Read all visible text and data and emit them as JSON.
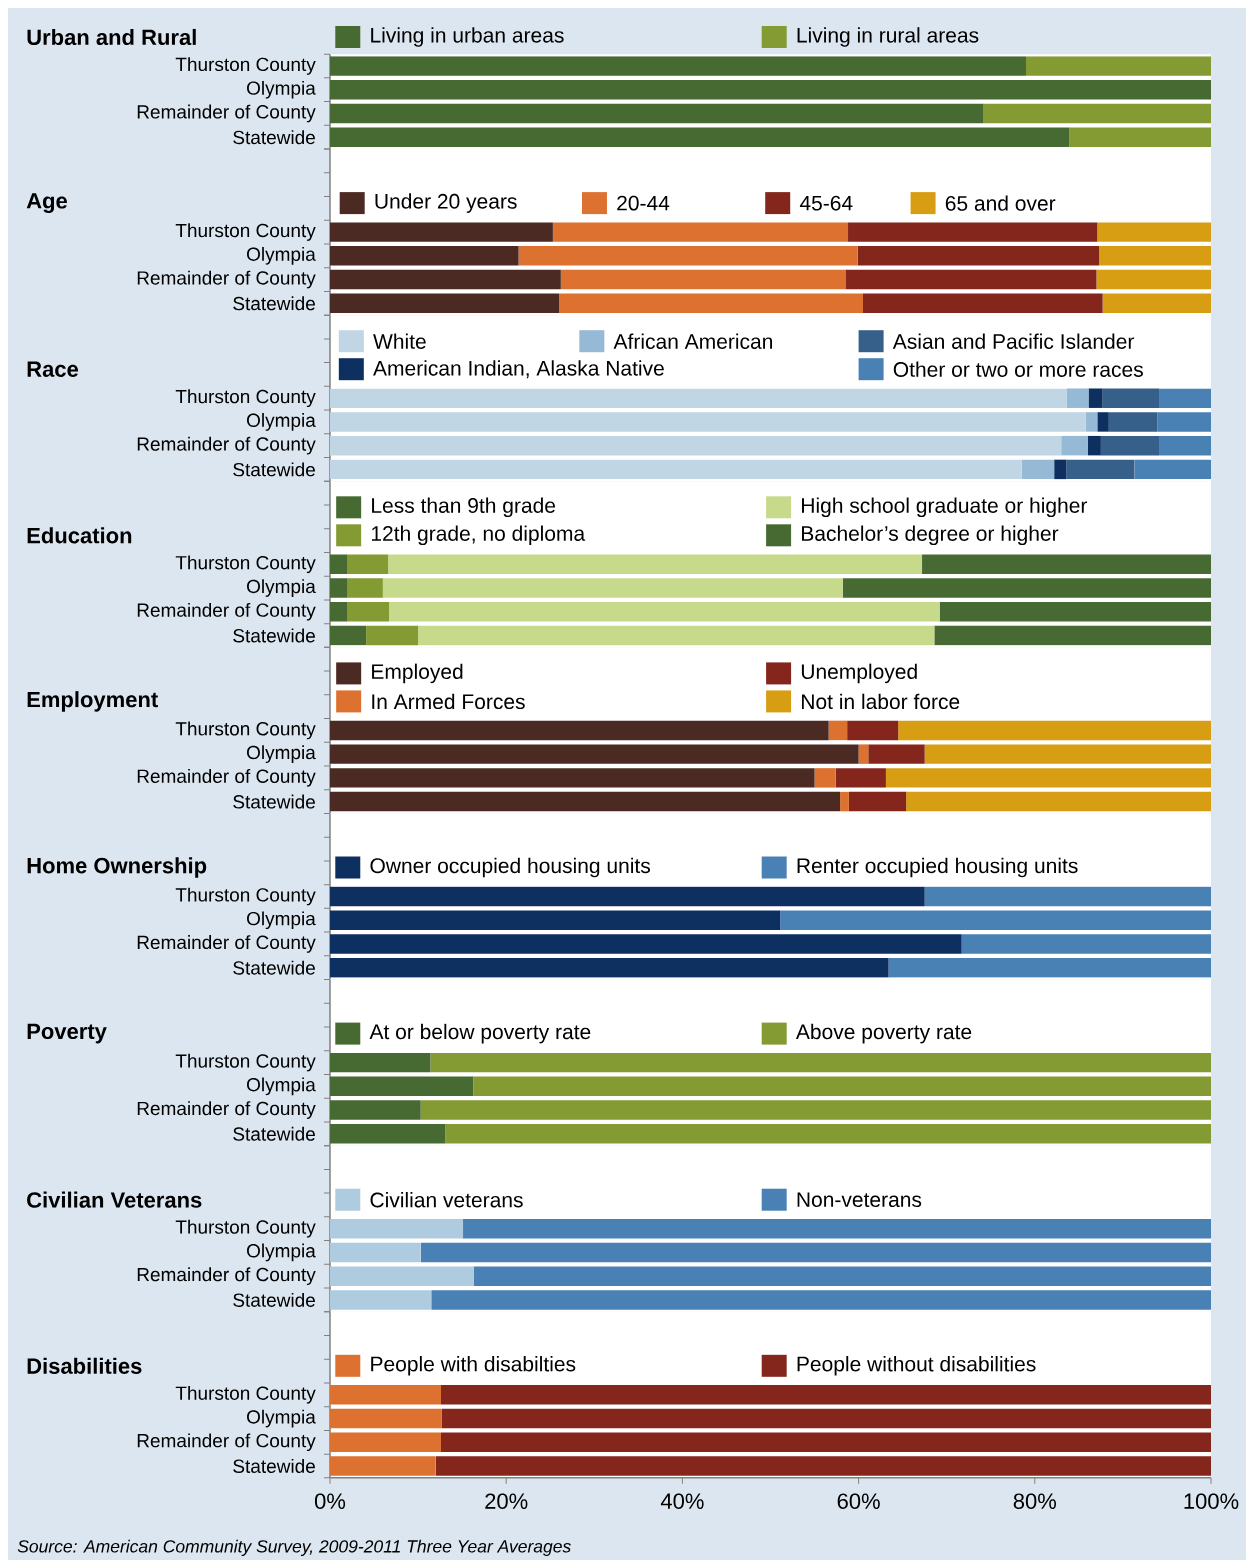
{
  "chart_data": [
    {
      "type": "bar",
      "orientation": "horizontal",
      "stacked": true,
      "title": "Urban and Rural",
      "categories": [
        "Thurston County",
        "Olympia",
        "Remainder of County",
        "Statewide"
      ],
      "series": [
        {
          "name": "Living in urban areas",
          "color": "#466a32",
          "values": [
            79.0,
            100,
            74.2,
            83.9
          ]
        },
        {
          "name": "Living in rural areas",
          "color": "#849a32",
          "values": [
            21.0,
            0,
            25.8,
            16.1
          ]
        }
      ],
      "xlim": [
        0,
        100
      ],
      "legend": "top",
      "tick_labels": "y"
    },
    {
      "type": "bar",
      "orientation": "horizontal",
      "stacked": true,
      "title": "Age",
      "categories": [
        "Thurston County",
        "Olympia",
        "Remainder of County",
        "Statewide"
      ],
      "series": [
        {
          "name": "Under 20 years",
          "color": "#4a2a22",
          "values": [
            25.3,
            21.4,
            26.2,
            26.0
          ]
        },
        {
          "name": "20-44",
          "color": "#dd7230",
          "values": [
            33.5,
            38.5,
            32.3,
            34.5
          ]
        },
        {
          "name": "45-64",
          "color": "#84261b",
          "values": [
            28.3,
            27.4,
            28.5,
            27.2
          ]
        },
        {
          "name": "65 and over",
          "color": "#d89e13",
          "values": [
            12.9,
            12.7,
            13.0,
            12.3
          ]
        }
      ],
      "xlim": [
        0,
        100
      ],
      "legend": "top",
      "tick_labels": "y"
    },
    {
      "type": "bar",
      "orientation": "horizontal",
      "stacked": true,
      "title": "Race",
      "categories": [
        "Thurston County",
        "Olympia",
        "Remainder of County",
        "Statewide"
      ],
      "series": [
        {
          "name": "White",
          "color": "#c0d6e4",
          "values": [
            83.6,
            85.8,
            83.0,
            78.5
          ]
        },
        {
          "name": "African American",
          "color": "#96b9d5",
          "values": [
            2.5,
            1.3,
            3.0,
            3.7
          ]
        },
        {
          "name": "American Indian, Alaska Native",
          "color": "#0d3060",
          "values": [
            1.6,
            1.3,
            1.5,
            1.4
          ]
        },
        {
          "name": "Asian and Pacific Islander",
          "color": "#365f8a",
          "values": [
            6.4,
            5.5,
            6.6,
            7.7
          ]
        },
        {
          "name": "Other or two or more races",
          "color": "#4a81b5",
          "values": [
            5.9,
            6.1,
            5.9,
            8.7
          ]
        }
      ],
      "xlim": [
        0,
        100
      ],
      "legend": "top",
      "tick_labels": "y"
    },
    {
      "type": "bar",
      "orientation": "horizontal",
      "stacked": true,
      "title": "Education",
      "categories": [
        "Thurston County",
        "Olympia",
        "Remainder of County",
        "Statewide"
      ],
      "series": [
        {
          "name": "Less than 9th grade",
          "color": "#466a32",
          "values": [
            2.0,
            2.0,
            2.0,
            4.1
          ]
        },
        {
          "name": "12th grade, no diploma",
          "color": "#849a32",
          "values": [
            4.6,
            4.0,
            4.7,
            5.9
          ]
        },
        {
          "name": "High school graduate or higher",
          "color": "#c7d98a",
          "values": [
            60.6,
            52.2,
            62.5,
            58.6
          ]
        },
        {
          "name": "Bachelor’s degree or higher",
          "color": "#466a32",
          "values": [
            32.8,
            41.8,
            30.8,
            31.4
          ]
        }
      ],
      "xlim": [
        0,
        100
      ],
      "legend": "top",
      "tick_labels": "y"
    },
    {
      "type": "bar",
      "orientation": "horizontal",
      "stacked": true,
      "title": "Employment",
      "categories": [
        "Thurston County",
        "Olympia",
        "Remainder of County",
        "Statewide"
      ],
      "series": [
        {
          "name": "Employed",
          "color": "#4a2a22",
          "values": [
            56.6,
            60.0,
            55.0,
            57.9
          ]
        },
        {
          "name": "In Armed Forces",
          "color": "#dd7230",
          "values": [
            2.1,
            1.1,
            2.4,
            1.0
          ]
        },
        {
          "name": "Unemployed",
          "color": "#84261b",
          "values": [
            5.8,
            6.4,
            5.7,
            6.5
          ]
        },
        {
          "name": "Not in labor force",
          "color": "#d89e13",
          "values": [
            35.5,
            32.5,
            36.9,
            34.6
          ]
        }
      ],
      "xlim": [
        0,
        100
      ],
      "legend": "top",
      "tick_labels": "y"
    },
    {
      "type": "bar",
      "orientation": "horizontal",
      "stacked": true,
      "title": "Home Ownership",
      "categories": [
        "Thurston County",
        "Olympia",
        "Remainder of County",
        "Statewide"
      ],
      "series": [
        {
          "name": "Owner occupied housing units",
          "color": "#0d3060",
          "values": [
            67.5,
            51.1,
            71.7,
            63.4
          ]
        },
        {
          "name": "Renter occupied housing units",
          "color": "#4a81b5",
          "values": [
            32.5,
            48.9,
            28.3,
            36.6
          ]
        }
      ],
      "xlim": [
        0,
        100
      ],
      "legend": "top",
      "tick_labels": "y"
    },
    {
      "type": "bar",
      "orientation": "horizontal",
      "stacked": true,
      "title": "Poverty",
      "categories": [
        "Thurston County",
        "Olympia",
        "Remainder of County",
        "Statewide"
      ],
      "series": [
        {
          "name": "At or below poverty rate",
          "color": "#466a32",
          "values": [
            11.4,
            16.3,
            10.3,
            13.1
          ]
        },
        {
          "name": "Above poverty rate",
          "color": "#849a32",
          "values": [
            88.6,
            83.7,
            89.7,
            86.9
          ]
        }
      ],
      "xlim": [
        0,
        100
      ],
      "legend": "top",
      "tick_labels": "y"
    },
    {
      "type": "bar",
      "orientation": "horizontal",
      "stacked": true,
      "title": "Civilian Veterans",
      "categories": [
        "Thurston County",
        "Olympia",
        "Remainder of County",
        "Statewide"
      ],
      "series": [
        {
          "name": "Civilian veterans",
          "color": "#aecbe0",
          "values": [
            15.1,
            10.3,
            16.3,
            11.5
          ]
        },
        {
          "name": "Non-veterans",
          "color": "#4a81b5",
          "values": [
            84.9,
            89.7,
            83.7,
            88.5
          ]
        }
      ],
      "xlim": [
        0,
        100
      ],
      "legend": "top",
      "tick_labels": "y"
    },
    {
      "type": "bar",
      "orientation": "horizontal",
      "stacked": true,
      "title": "Disabilities",
      "categories": [
        "Thurston County",
        "Olympia",
        "Remainder of County",
        "Statewide"
      ],
      "series": [
        {
          "name": "People with disabilties",
          "color": "#dd7230",
          "values": [
            12.6,
            12.7,
            12.6,
            12.0
          ]
        },
        {
          "name": "People without disabilities",
          "color": "#84261b",
          "values": [
            87.4,
            87.3,
            87.4,
            88.0
          ]
        }
      ],
      "xlim": [
        0,
        100
      ],
      "xticks": [
        {
          "value": 0,
          "label": "0%"
        },
        {
          "value": 20,
          "label": "20%"
        },
        {
          "value": 40,
          "label": "40%"
        },
        {
          "value": 60,
          "label": "60%"
        },
        {
          "value": 80,
          "label": "80%"
        },
        {
          "value": 100,
          "label": "100%"
        }
      ],
      "legend": "top",
      "annotations": [
        "Source: American Community Survey, 2009-2011 Three Year Averages"
      ]
    }
  ]
}
